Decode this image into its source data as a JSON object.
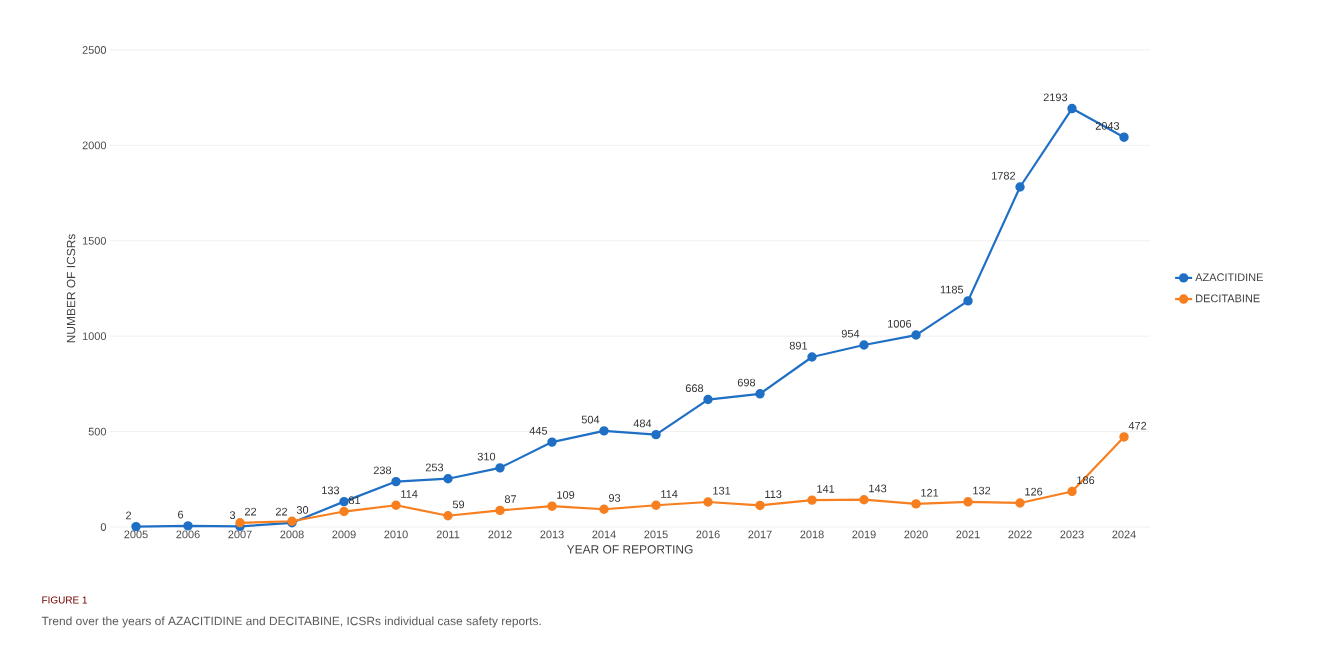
{
  "chart_data": {
    "type": "line",
    "xlabel": "YEAR OF REPORTING",
    "ylabel": "NUMBER OF ICSRs",
    "categories": [
      "2005",
      "2006",
      "2007",
      "2008",
      "2009",
      "2010",
      "2011",
      "2012",
      "2013",
      "2014",
      "2015",
      "2016",
      "2017",
      "2018",
      "2019",
      "2020",
      "2021",
      "2022",
      "2023",
      "2024"
    ],
    "series": [
      {
        "name": "AZACITIDINE",
        "color": "#1f6fc5",
        "values": [
          2,
          6,
          3,
          22,
          133,
          238,
          253,
          310,
          445,
          504,
          484,
          668,
          698,
          891,
          954,
          1006,
          1185,
          1782,
          2193,
          2043
        ]
      },
      {
        "name": "DECITABINE",
        "color": "#f77f1f",
        "values": [
          null,
          null,
          22,
          30,
          81,
          114,
          59,
          87,
          109,
          93,
          114,
          131,
          113,
          141,
          143,
          121,
          132,
          126,
          186,
          472
        ]
      }
    ],
    "ylim": [
      0,
      2500
    ],
    "yticks": [
      0,
      500,
      1000,
      1500,
      2000,
      2500
    ],
    "grid": "y",
    "legend": "right",
    "marker": "circle",
    "line_style": "solid",
    "data_labels": true,
    "annotations": [
      "FIGURE 1",
      "Trend over the years of AZACITIDINE and DECITABINE, ICSRs individual case safety reports."
    ]
  }
}
